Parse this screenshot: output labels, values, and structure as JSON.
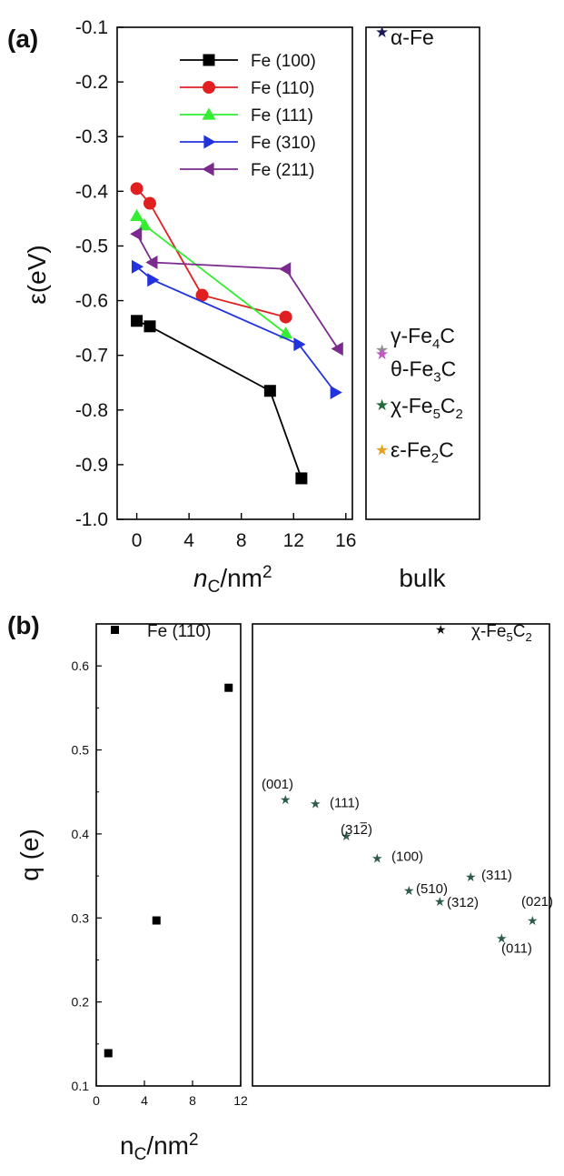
{
  "chart_data": [
    {
      "panel": "(a)",
      "type": "line",
      "xlabel": "nC/nm2",
      "ylabel": "ε(eV)",
      "xlim": [
        -1.5,
        16.5
      ],
      "ylim": [
        -1.0,
        -0.1
      ],
      "xticks": [
        "0",
        "4",
        "8",
        "12",
        "16"
      ],
      "yticks": [
        "-0.1",
        "-0.2",
        "-0.3",
        "-0.4",
        "-0.5",
        "-0.6",
        "-0.7",
        "-0.8",
        "-0.9",
        "-1.0"
      ],
      "legend_position": "top-right",
      "series": [
        {
          "name": "Fe (100)",
          "color": "#000000",
          "marker": "square",
          "points": [
            [
              0,
              -0.637
            ],
            [
              1.0,
              -0.647
            ],
            [
              10.2,
              -0.765
            ],
            [
              12.6,
              -0.925
            ]
          ]
        },
        {
          "name": "Fe (110)",
          "color": "#e02020",
          "marker": "circle",
          "points": [
            [
              0,
              -0.395
            ],
            [
              1.0,
              -0.422
            ],
            [
              5.0,
              -0.59
            ],
            [
              11.4,
              -0.63
            ]
          ]
        },
        {
          "name": "Fe (111)",
          "color": "#33ee33",
          "marker": "triangle-up",
          "points": [
            [
              0,
              -0.445
            ],
            [
              0.6,
              -0.462
            ],
            [
              11.4,
              -0.66
            ]
          ]
        },
        {
          "name": "Fe (310)",
          "color": "#2233dd",
          "marker": "triangle-right",
          "points": [
            [
              0,
              -0.538
            ],
            [
              1.2,
              -0.562
            ],
            [
              12.4,
              -0.68
            ],
            [
              15.2,
              -0.768
            ]
          ]
        },
        {
          "name": "Fe (211)",
          "color": "#7b2a8e",
          "marker": "triangle-left",
          "points": [
            [
              0,
              -0.478
            ],
            [
              1.2,
              -0.53
            ],
            [
              11.4,
              -0.542
            ],
            [
              15.4,
              -0.688
            ]
          ]
        }
      ],
      "bulk": {
        "label": "bulk",
        "points": [
          {
            "label_prefix": "α-Fe",
            "sub": "",
            "label_suffix": "",
            "sub2": "",
            "y": -0.108,
            "color": "#1a1a5a",
            "label_y": -0.118
          },
          {
            "label_prefix": "γ-Fe",
            "sub": "4",
            "label_suffix": "C",
            "sub2": "",
            "y": -0.69,
            "color": "#909090",
            "label_y": -0.664
          },
          {
            "label_prefix": "θ-Fe",
            "sub": "3",
            "label_suffix": "C",
            "sub2": "",
            "y": -0.697,
            "color": "#c058c8",
            "label_y": -0.725
          },
          {
            "label_prefix": "χ-Fe",
            "sub": "5",
            "label_suffix": "C",
            "sub2": "2",
            "y": -0.79,
            "color": "#1f6b3a",
            "label_y": -0.792
          },
          {
            "label_prefix": "ε-Fe",
            "sub": "2",
            "label_suffix": "C",
            "sub2": "",
            "y": -0.873,
            "color": "#e8a020",
            "label_y": -0.873
          }
        ]
      }
    },
    {
      "panel": "(b)",
      "type": "scatter",
      "xlabel": "nC/nm2",
      "ylabel": "q (e)",
      "xlim": [
        0,
        12
      ],
      "ylim": [
        0.1,
        0.65
      ],
      "xticks": [
        "0",
        "4",
        "8",
        "12"
      ],
      "yticks": [
        "0.1",
        "0.2",
        "0.3",
        "0.4",
        "0.5",
        "0.6"
      ],
      "series": [
        {
          "name": "Fe (110)",
          "color": "#000000",
          "marker": "square",
          "points": [
            [
              1.0,
              0.139
            ],
            [
              5.0,
              0.297
            ],
            [
              11.0,
              0.574
            ]
          ]
        }
      ],
      "bulk_series": {
        "name": "χ-Fe5C2",
        "color": "#2e5a4e",
        "points": [
          {
            "facet": "(001)",
            "q": 0.441
          },
          {
            "facet": "(111)",
            "q": 0.436
          },
          {
            "facet": "(312)",
            "q": 0.398,
            "overline_index": 2
          },
          {
            "facet": "(100)",
            "q": 0.371
          },
          {
            "facet": "(510)",
            "q": 0.333
          },
          {
            "facet": "(312)",
            "q": 0.32
          },
          {
            "facet": "(311)",
            "q": 0.349
          },
          {
            "facet": "(021)",
            "q": 0.297
          },
          {
            "facet": "(011)",
            "q": 0.276
          }
        ]
      }
    }
  ]
}
